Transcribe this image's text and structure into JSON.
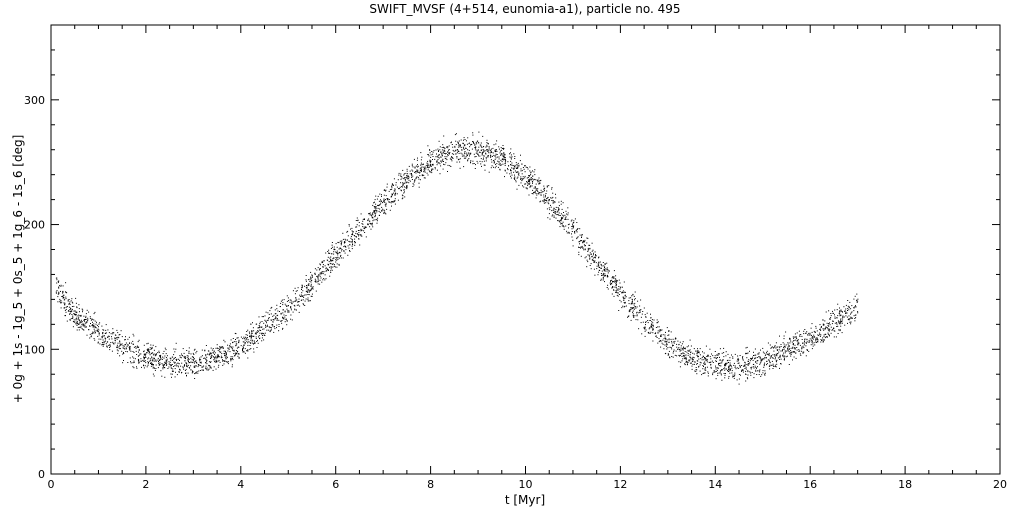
{
  "chart_data": {
    "type": "scatter",
    "title": "SWIFT_MVSF (4+514, eunomia-a1), particle no. 495",
    "xlabel": "t [Myr]",
    "ylabel": "+ 0g + 1s - 1g_5 + 0s_5 + 1g_6 - 1s_6 [deg]",
    "xlim": [
      0,
      20
    ],
    "ylim": [
      0,
      360
    ],
    "xticks": [
      0,
      2,
      4,
      6,
      8,
      10,
      12,
      14,
      16,
      18,
      20
    ],
    "yticks": [
      0,
      100,
      200,
      300
    ],
    "grid": false,
    "series": [
      {
        "x": [
          0.1,
          0.5,
          1.0,
          1.5,
          2.0,
          2.5,
          3.0,
          3.5,
          4.0,
          4.5,
          5.0,
          5.5,
          6.0,
          6.5,
          7.0,
          7.5,
          8.0,
          8.5,
          9.0,
          9.5,
          10.0,
          10.5,
          11.0,
          11.5,
          12.0,
          12.5,
          13.0,
          13.5,
          14.0,
          14.5,
          15.0,
          15.5,
          16.0,
          16.5,
          17.0
        ],
        "y": [
          150,
          128,
          113,
          102,
          94,
          89,
          89,
          94,
          103,
          117,
          133,
          153,
          175,
          197,
          218,
          237,
          251,
          259,
          260,
          253,
          239,
          219,
          195,
          170,
          145,
          123,
          106,
          94,
          88,
          87,
          91,
          100,
          109,
          121,
          135
        ],
        "scatter_deg": 8
      }
    ]
  }
}
